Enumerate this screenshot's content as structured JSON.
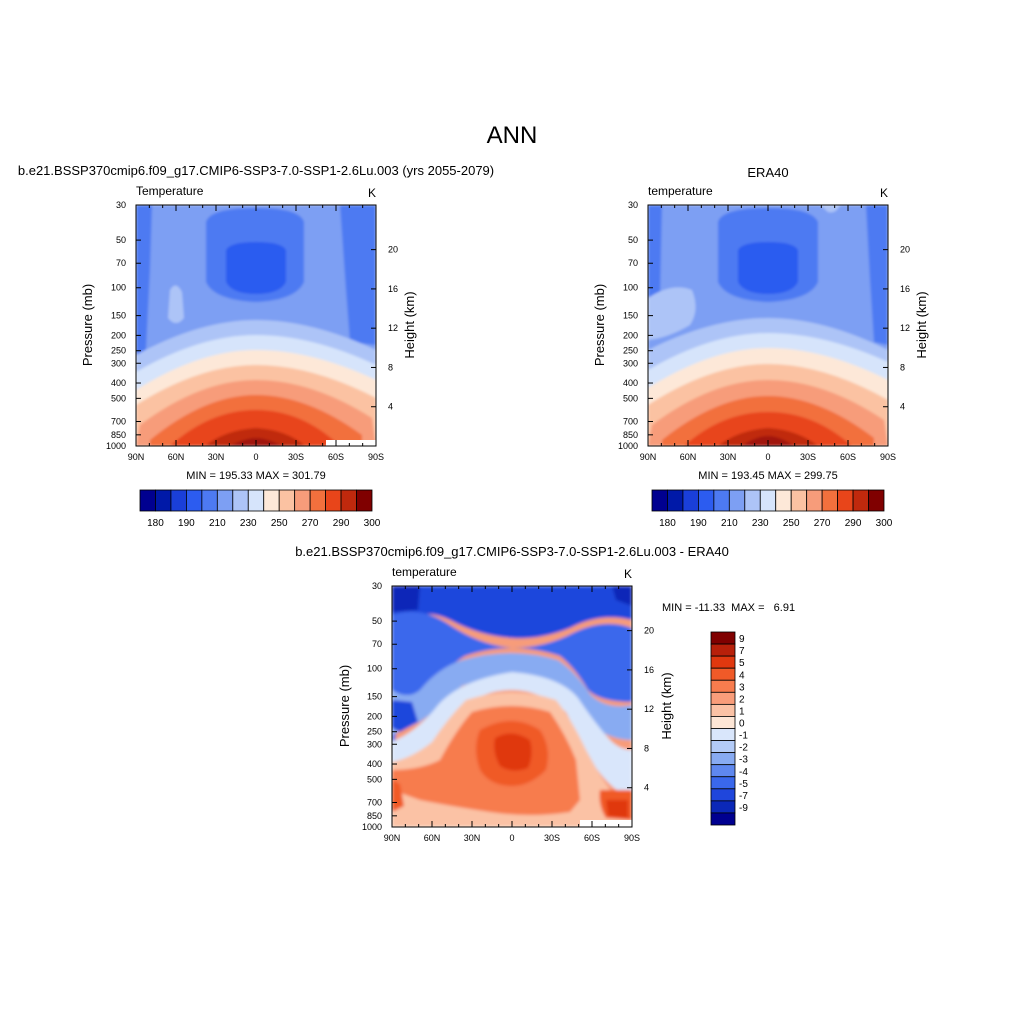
{
  "figure": {
    "title": "ANN"
  },
  "chart_data": [
    {
      "type": "heatmap",
      "panel_title": "b.e21.BSSP370cmip6.f09_g17.CMIP6-SSP3-7.0-SSP1-2.6Lu.003 (yrs 2055-2079)",
      "variable_label": "Temperature",
      "units": "K",
      "ylabel": "Pressure (mb)",
      "y2label": "Height (km)",
      "x_ticks": [
        "90N",
        "60N",
        "30N",
        "0",
        "30S",
        "60S",
        "90S"
      ],
      "y_ticks": [
        "30",
        "50",
        "70",
        "100",
        "150",
        "200",
        "250",
        "300",
        "400",
        "500",
        "700",
        "850",
        "1000"
      ],
      "y2_ticks": [
        "20",
        "16",
        "12",
        "8",
        "4"
      ],
      "stats": "MIN = 195.33  MAX = 301.79",
      "min": 195.33,
      "max": 301.79,
      "colorbar": {
        "orientation": "horizontal",
        "labels": [
          "180",
          "190",
          "210",
          "230",
          "250",
          "270",
          "290",
          "300"
        ],
        "colors": [
          "#000090",
          "#0019a8",
          "#1a3fd9",
          "#2c5cf0",
          "#4d7af2",
          "#7d9ff3",
          "#adc4f7",
          "#d6e4fb",
          "#fde8d8",
          "#fbc2a2",
          "#f79c7a",
          "#f2703d",
          "#e8451a",
          "#c0290d",
          "#800000"
        ]
      }
    },
    {
      "type": "heatmap",
      "panel_title": "ERA40",
      "variable_label": "temperature",
      "units": "K",
      "ylabel": "Pressure (mb)",
      "y2label": "Height (km)",
      "x_ticks": [
        "90N",
        "60N",
        "30N",
        "0",
        "30S",
        "60S",
        "90S"
      ],
      "y_ticks": [
        "30",
        "50",
        "70",
        "100",
        "150",
        "200",
        "250",
        "300",
        "400",
        "500",
        "700",
        "850",
        "1000"
      ],
      "y2_ticks": [
        "20",
        "16",
        "12",
        "8",
        "4"
      ],
      "stats": "MIN = 193.45  MAX = 299.75",
      "min": 193.45,
      "max": 299.75,
      "colorbar": {
        "orientation": "horizontal",
        "labels": [
          "180",
          "190",
          "210",
          "230",
          "250",
          "270",
          "290",
          "300"
        ],
        "colors": [
          "#000090",
          "#0019a8",
          "#1a3fd9",
          "#2c5cf0",
          "#4d7af2",
          "#7d9ff3",
          "#adc4f7",
          "#d6e4fb",
          "#fde8d8",
          "#fbc2a2",
          "#f79c7a",
          "#f2703d",
          "#e8451a",
          "#c0290d",
          "#800000"
        ]
      }
    },
    {
      "type": "heatmap",
      "panel_title": "b.e21.BSSP370cmip6.f09_g17.CMIP6-SSP3-7.0-SSP1-2.6Lu.003 - ERA40",
      "variable_label": "temperature",
      "units": "K",
      "ylabel": "Pressure (mb)",
      "y2label": "Height (km)",
      "x_ticks": [
        "90N",
        "60N",
        "30N",
        "0",
        "30S",
        "60S",
        "90S"
      ],
      "y_ticks": [
        "30",
        "50",
        "70",
        "100",
        "150",
        "200",
        "250",
        "300",
        "400",
        "500",
        "700",
        "850",
        "1000"
      ],
      "y2_ticks": [
        "20",
        "16",
        "12",
        "8",
        "4"
      ],
      "stats": "MIN = -11.33  MAX =   6.91",
      "min": -11.33,
      "max": 6.91,
      "colorbar": {
        "orientation": "vertical",
        "labels": [
          "9",
          "7",
          "5",
          "4",
          "3",
          "2",
          "1",
          "0",
          "-1",
          "-2",
          "-3",
          "-4",
          "-5",
          "-7",
          "-9"
        ],
        "colors": [
          "#800000",
          "#b8200a",
          "#e0380f",
          "#f05a28",
          "#f77c4e",
          "#f99d7a",
          "#fbc2a5",
          "#fde6d6",
          "#d9e6fb",
          "#b3cbf7",
          "#88abf2",
          "#5f88ef",
          "#3a68ec",
          "#1f46dc",
          "#0b28b8",
          "#000090"
        ]
      }
    }
  ]
}
